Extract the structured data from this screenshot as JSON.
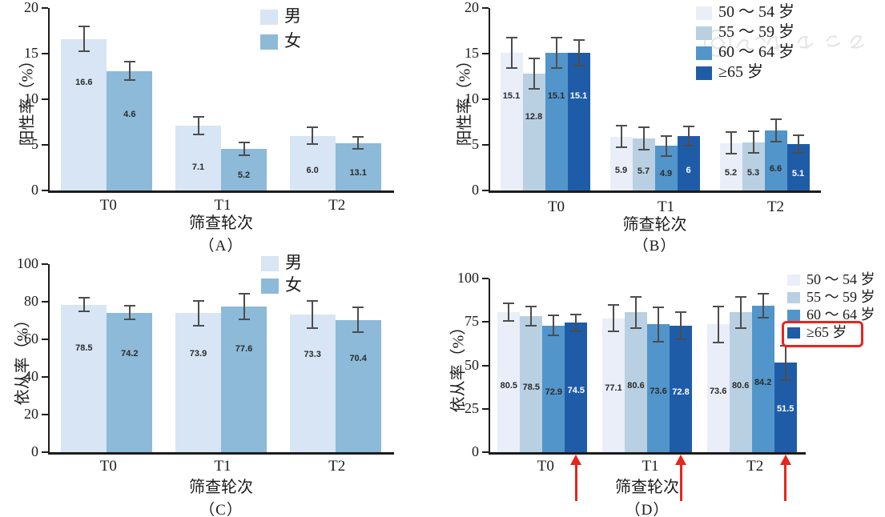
{
  "figure": {
    "background": "#ffffff",
    "watermark_present": true
  },
  "colors": {
    "axis": "#1c1c1c",
    "error_bar": "#4d4d4d",
    "annotation_red": "#e8251d",
    "sex_male": "#d7e5f4",
    "sex_female": "#8dbad8",
    "age_50_54": "#e9eef9",
    "age_55_59": "#b9d0e2",
    "age_60_64": "#5195cb",
    "age_65_plus": "#1f5ca8",
    "value_label_dark": "#2b2b2b",
    "value_label_light": "#ffffff"
  },
  "chart_data": [
    {
      "id": "A",
      "type": "bar",
      "caption": "（A）",
      "ylabel": "阳性率（%）",
      "xlabel": "筛查轮次",
      "ylim": [
        0,
        20
      ],
      "yticks": [
        0,
        5,
        10,
        15,
        20
      ],
      "categories": [
        "T0",
        "T1",
        "T2"
      ],
      "grid": false,
      "legend_position": "top-right-inside",
      "error_bars": true,
      "series": [
        {
          "name": "男",
          "color": "#d7e5f4",
          "label_color": "#2b2b2b",
          "values": [
            16.6,
            7.1,
            6.0
          ],
          "value_labels": [
            "16.6",
            "7.1",
            "6.0"
          ],
          "errors": [
            1.35,
            0.95,
            0.95
          ]
        },
        {
          "name": "女",
          "color": "#8dbad8",
          "label_color": "#2b2b2b",
          "values": [
            13.1,
            4.6,
            5.2
          ],
          "value_labels": [
            "4.6",
            "5.2",
            "13.1"
          ],
          "errors": [
            1.0,
            0.7,
            0.65
          ],
          "value_labels_ordered": [
            "13.1",
            "4.6",
            "5.2"
          ]
        }
      ]
    },
    {
      "id": "B",
      "type": "bar",
      "caption": "（B）",
      "ylabel": "阳性率（%）",
      "xlabel": "筛查轮次",
      "ylim": [
        0,
        20
      ],
      "yticks": [
        0,
        5,
        10,
        15,
        20
      ],
      "categories": [
        "T0",
        "T1",
        "T2"
      ],
      "grid": false,
      "legend_position": "top-right-inside",
      "error_bars": true,
      "series": [
        {
          "name": "50 ～ 54 岁",
          "color": "#e9eef9",
          "label_color": "#2b2b2b",
          "values": [
            15.1,
            5.9,
            5.2
          ],
          "value_labels": [
            "15.1",
            "5.9",
            "5.2"
          ],
          "errors": [
            1.65,
            1.2,
            1.2
          ]
        },
        {
          "name": "55 ～ 59 岁",
          "color": "#b9d0e2",
          "label_color": "#2b2b2b",
          "values": [
            12.8,
            5.7,
            5.3
          ],
          "value_labels": [
            "12.8",
            "5.7",
            "5.3"
          ],
          "errors": [
            1.65,
            1.25,
            1.15
          ]
        },
        {
          "name": "60 ～ 64 岁",
          "color": "#5195cb",
          "label_color": "#2b2b2b",
          "values": [
            15.1,
            4.9,
            6.6
          ],
          "value_labels": [
            "15.1",
            "4.9",
            "6.6"
          ],
          "errors": [
            1.65,
            1.1,
            1.25
          ]
        },
        {
          "name": "≥65 岁",
          "color": "#1f5ca8",
          "label_color": "#ffffff",
          "values": [
            15.1,
            6.0,
            5.1
          ],
          "value_labels": [
            "15.1",
            "6",
            "5.1"
          ],
          "errors": [
            1.4,
            1.05,
            0.95
          ]
        }
      ]
    },
    {
      "id": "C",
      "type": "bar",
      "caption": "（C）",
      "ylabel": "依从率（%）",
      "xlabel": "筛查轮次",
      "ylim": [
        0,
        100
      ],
      "yticks": [
        0,
        20,
        40,
        60,
        80,
        100
      ],
      "categories": [
        "T0",
        "T1",
        "T2"
      ],
      "grid": false,
      "legend_position": "top-right-inside",
      "error_bars": true,
      "series": [
        {
          "name": "男",
          "color": "#d7e5f4",
          "label_color": "#2b2b2b",
          "values": [
            78.5,
            73.9,
            73.3
          ],
          "value_labels": [
            "78.5",
            "73.9",
            "73.3"
          ],
          "errors": [
            3.8,
            6.6,
            7.3
          ]
        },
        {
          "name": "女",
          "color": "#8dbad8",
          "label_color": "#2b2b2b",
          "values": [
            74.2,
            77.6,
            70.4
          ],
          "value_labels": [
            "74.2",
            "77.6",
            "70.4"
          ],
          "errors": [
            3.7,
            6.8,
            6.7
          ]
        }
      ]
    },
    {
      "id": "D",
      "type": "bar",
      "caption": "（D）",
      "ylabel": "依从率（%）",
      "xlabel": "筛查轮次",
      "ylim": [
        0,
        100
      ],
      "yticks": [
        0,
        25,
        50,
        75,
        100
      ],
      "categories": [
        "T0",
        "T1",
        "T2"
      ],
      "grid": false,
      "legend_position": "top-right-inside",
      "error_bars": true,
      "series": [
        {
          "name": "50 ～ 54 岁",
          "color": "#e9eef9",
          "label_color": "#2b2b2b",
          "values": [
            80.5,
            77.1,
            73.6
          ],
          "value_labels": [
            "80.5",
            "77.1",
            "73.6"
          ],
          "errors": [
            5.0,
            7.5,
            10.5
          ]
        },
        {
          "name": "55 ～ 59 岁",
          "color": "#b9d0e2",
          "label_color": "#2b2b2b",
          "values": [
            78.5,
            80.6,
            80.6
          ],
          "value_labels": [
            "78.5",
            "80.6",
            "80.6"
          ],
          "errors": [
            5.6,
            9.0,
            9.0
          ]
        },
        {
          "name": "60 ～ 64 岁",
          "color": "#5195cb",
          "label_color": "#2b2b2b",
          "values": [
            72.9,
            73.6,
            84.2
          ],
          "value_labels": [
            "72.9",
            "73.6",
            "84.2"
          ],
          "errors": [
            5.8,
            10.0,
            7.0
          ]
        },
        {
          "name": "≥65 岁",
          "color": "#1f5ca8",
          "label_color": "#ffffff",
          "values": [
            74.5,
            72.8,
            51.5
          ],
          "value_labels": [
            "74.5",
            "72.8",
            "51.5"
          ],
          "errors": [
            4.7,
            8.0,
            10.0
          ]
        }
      ]
    }
  ],
  "annotations": {
    "legend_highlight_box": {
      "panel": "D",
      "item": "≥65 岁",
      "series_index": 3,
      "color": "#e8251d"
    },
    "arrows": {
      "panel": "D",
      "series": "≥65 岁",
      "series_index": 3,
      "at_categories": [
        "T0",
        "T1",
        "T2"
      ],
      "direction": "up",
      "color": "#e8251d"
    }
  }
}
